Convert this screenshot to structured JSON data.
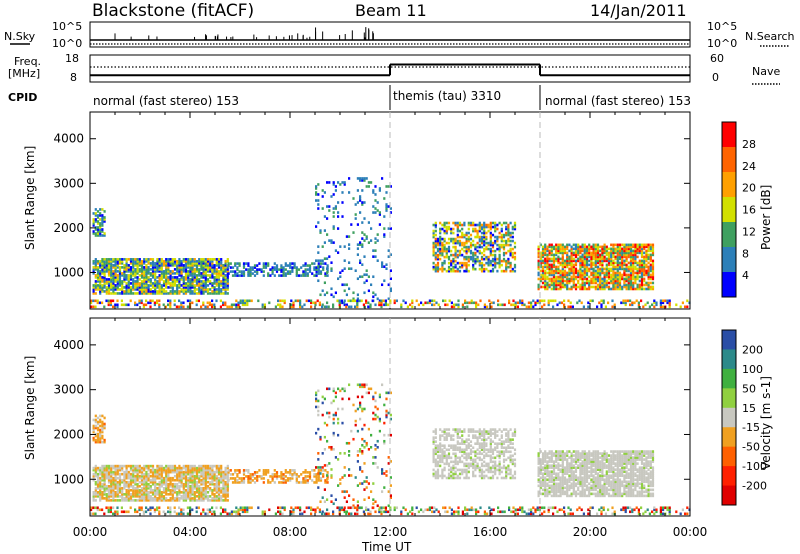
{
  "header": {
    "site": "Blackstone (fitACF)",
    "beam": "Beam 11",
    "date": "14/Jan/2011"
  },
  "summary_panels": {
    "nsky_label": "N.Sky",
    "nsky_ticks": [
      "10^5",
      "10^0"
    ],
    "nsearch_label": "N.Search",
    "nsearch_ticks": [
      "10^5",
      "10^0"
    ],
    "freq_label_1": "Freq.",
    "freq_label_2": "[MHz]",
    "freq_ticks": [
      "18",
      "8"
    ],
    "nave_label": "Nave",
    "nave_ticks": [
      "60",
      "0"
    ],
    "cpid_label": "CPID",
    "cpid_segments": [
      {
        "label": "normal (fast stereo) 153",
        "start": 0,
        "end": 12
      },
      {
        "label": "themis (tau) 3310",
        "start": 12,
        "end": 18
      },
      {
        "label": "normal (fast stereo) 153",
        "start": 18,
        "end": 24
      }
    ],
    "freq_data": [
      {
        "start": 0,
        "end": 12,
        "value": 10.5
      },
      {
        "start": 12,
        "end": 18,
        "value": 14.5
      },
      {
        "start": 18,
        "end": 24,
        "value": 10.5
      }
    ]
  },
  "chart_data": [
    {
      "type": "heatmap",
      "name": "power",
      "ylabel": "Slant Range [km]",
      "xlabel": "Time UT",
      "xlim": [
        0,
        24
      ],
      "ylim": [
        180,
        4600
      ],
      "x_ticks": [
        "00:00",
        "04:00",
        "08:00",
        "12:00",
        "16:00",
        "20:00",
        "00:00"
      ],
      "y_ticks": [
        1000,
        2000,
        3000,
        4000
      ],
      "colorbar_label": "Power [dB]",
      "colorbar_ticks": [
        "28",
        "24",
        "20",
        "16",
        "12",
        "8",
        "4"
      ],
      "colorbar_colors": [
        "#ff0000",
        "#ff6400",
        "#ffa000",
        "#d2e000",
        "#3fa060",
        "#2c7fb8",
        "#0000ff"
      ]
    },
    {
      "type": "heatmap",
      "name": "velocity",
      "ylabel": "Slant Range [km]",
      "xlabel": "Time UT",
      "xlim": [
        0,
        24
      ],
      "ylim": [
        180,
        4600
      ],
      "x_ticks": [
        "00:00",
        "04:00",
        "08:00",
        "12:00",
        "16:00",
        "20:00",
        "00:00"
      ],
      "y_ticks": [
        1000,
        2000,
        3000,
        4000
      ],
      "colorbar_label": "Velocity [m s-1]",
      "colorbar_ticks": [
        "200",
        "100",
        "50",
        "15",
        "-15",
        "-50",
        "-100",
        "-200"
      ],
      "colorbar_colors": [
        "#2a4ea6",
        "#2c8a8a",
        "#40b040",
        "#90d040",
        "#c8c8c0",
        "#f0a020",
        "#ff6000",
        "#ff2000",
        "#e00000"
      ]
    }
  ],
  "scatter_regions": [
    {
      "t0": 0.1,
      "t1": 5.5,
      "r0": 500,
      "r1": 1300,
      "density": 0.85,
      "pmin": 4,
      "pmax": 20,
      "vmode": "mix"
    },
    {
      "t0": 0.1,
      "t1": 0.6,
      "r0": 1800,
      "r1": 2400,
      "density": 0.6,
      "pmin": 4,
      "pmax": 16,
      "vmode": "neg"
    },
    {
      "t0": 5.5,
      "t1": 9.5,
      "r0": 900,
      "r1": 1200,
      "density": 0.55,
      "pmin": 4,
      "pmax": 12,
      "vmode": "neg"
    },
    {
      "t0": 9.0,
      "t1": 12.0,
      "r0": 200,
      "r1": 3100,
      "density": 0.12,
      "pmin": 4,
      "pmax": 12,
      "vmode": "rand"
    },
    {
      "t0": 13.7,
      "t1": 17.0,
      "r0": 1000,
      "r1": 2100,
      "density": 0.55,
      "pmin": 4,
      "pmax": 24,
      "vmode": "zero"
    },
    {
      "t0": 17.9,
      "t1": 22.5,
      "r0": 600,
      "r1": 1600,
      "density": 0.8,
      "pmin": 8,
      "pmax": 28,
      "vmode": "zero"
    },
    {
      "t0": 0.0,
      "t1": 24.0,
      "r0": 200,
      "r1": 350,
      "density": 0.35,
      "pmin": 4,
      "pmax": 28,
      "vmode": "rand"
    }
  ]
}
